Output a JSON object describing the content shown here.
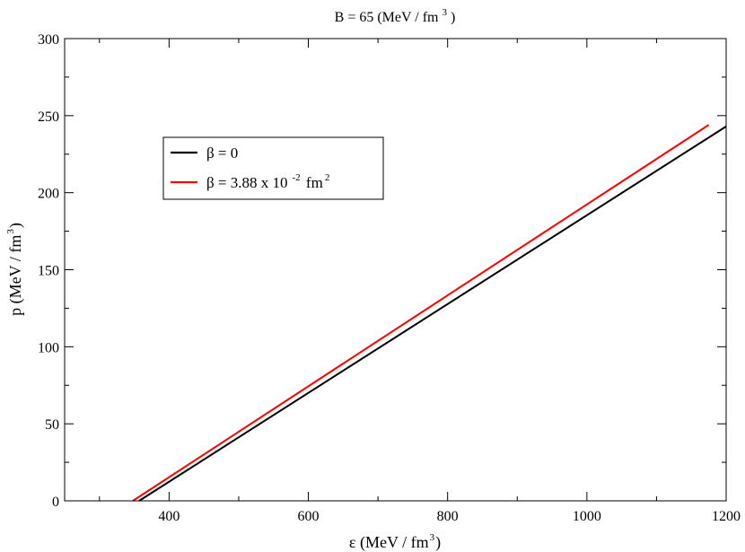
{
  "chart_data": {
    "type": "line",
    "title": {
      "main": "B = 65 (MeV / fm",
      "sup": "3",
      "tail": ")"
    },
    "xlabel": {
      "main": "ε  (MeV / fm",
      "sup": "3",
      "tail": ")"
    },
    "ylabel": {
      "main": "p  (MeV / fm",
      "sup": "3",
      "tail": ")"
    },
    "xlim": [
      250,
      1200
    ],
    "ylim": [
      0,
      300
    ],
    "xticks": [
      400,
      600,
      800,
      1000,
      1200
    ],
    "xticks_minor": [
      300,
      500,
      700,
      900,
      1100
    ],
    "yticks": [
      0,
      50,
      100,
      150,
      200,
      250,
      300
    ],
    "yticks_minor": [
      25,
      75,
      125,
      175,
      225,
      275
    ],
    "grid": false,
    "legend_position": "upper-left",
    "series": [
      {
        "name": "β = 0",
        "legend": {
          "main": "β = 0"
        },
        "color": "#000000",
        "x": [
          357,
          1200
        ],
        "y": [
          0,
          243
        ]
      },
      {
        "name": "β = 3.88  x 10-2  fm2",
        "legend": {
          "main": "β = 3.88  x 10",
          "sup1": "-2",
          "mid": "  fm",
          "sup2": "2"
        },
        "color": "#ff0000",
        "x": [
          348,
          1175
        ],
        "y": [
          0,
          244
        ]
      }
    ]
  }
}
